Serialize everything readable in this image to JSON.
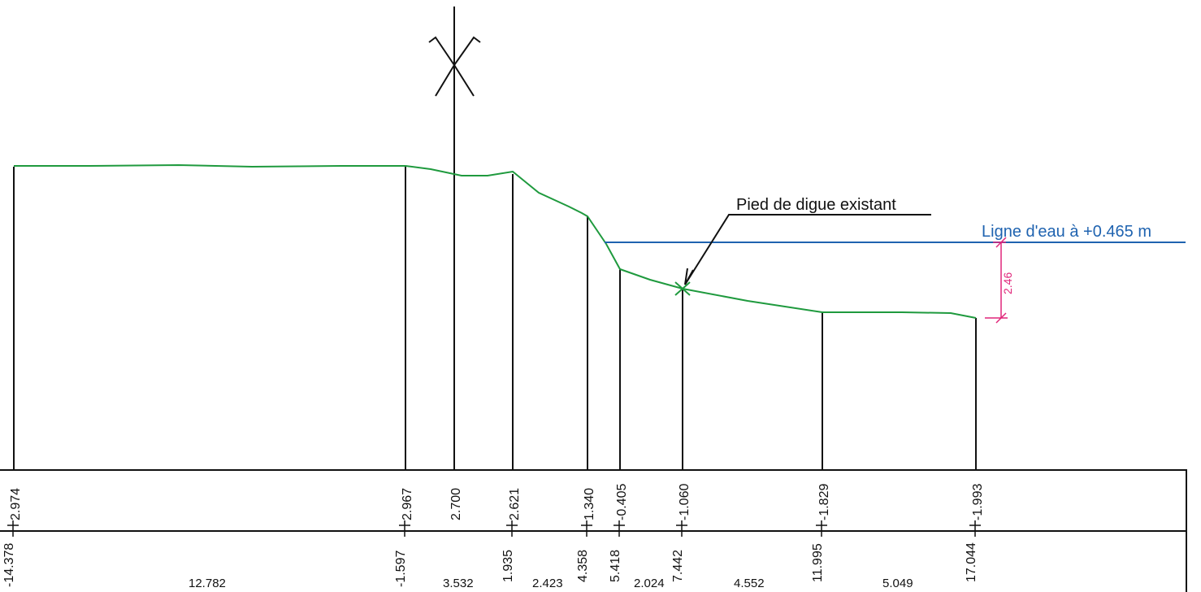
{
  "annotations": {
    "pied_label": "Pied de digue existant",
    "water_label": "Ligne d'eau à +0.465 m",
    "dimension_label": "2.46"
  },
  "colors": {
    "ground": "#1f9a3e",
    "water": "#1f63b0",
    "dimension": "#e0267a",
    "ink": "#111111"
  },
  "stations": [
    {
      "distance": "-14.378",
      "elevation": "2.974"
    },
    {
      "distance": "-1.597",
      "elevation": "2.967"
    },
    {
      "distance": "",
      "elevation": "2.700"
    },
    {
      "distance": "1.935",
      "elevation": "2.621"
    },
    {
      "distance": "4.358",
      "elevation": "1.340"
    },
    {
      "distance": "5.418",
      "elevation": "-0.405"
    },
    {
      "distance": "7.442",
      "elevation": "-1.060"
    },
    {
      "distance": "11.995",
      "elevation": "-1.829"
    },
    {
      "distance": "17.044",
      "elevation": "-1.993"
    }
  ],
  "partials": [
    "12.782",
    "3.532",
    "2.423",
    "2.024",
    "4.552",
    "5.049"
  ],
  "markers": {
    "axis_marker": "axis-cross-icon",
    "toe_marker": "toe-cross-icon"
  }
}
